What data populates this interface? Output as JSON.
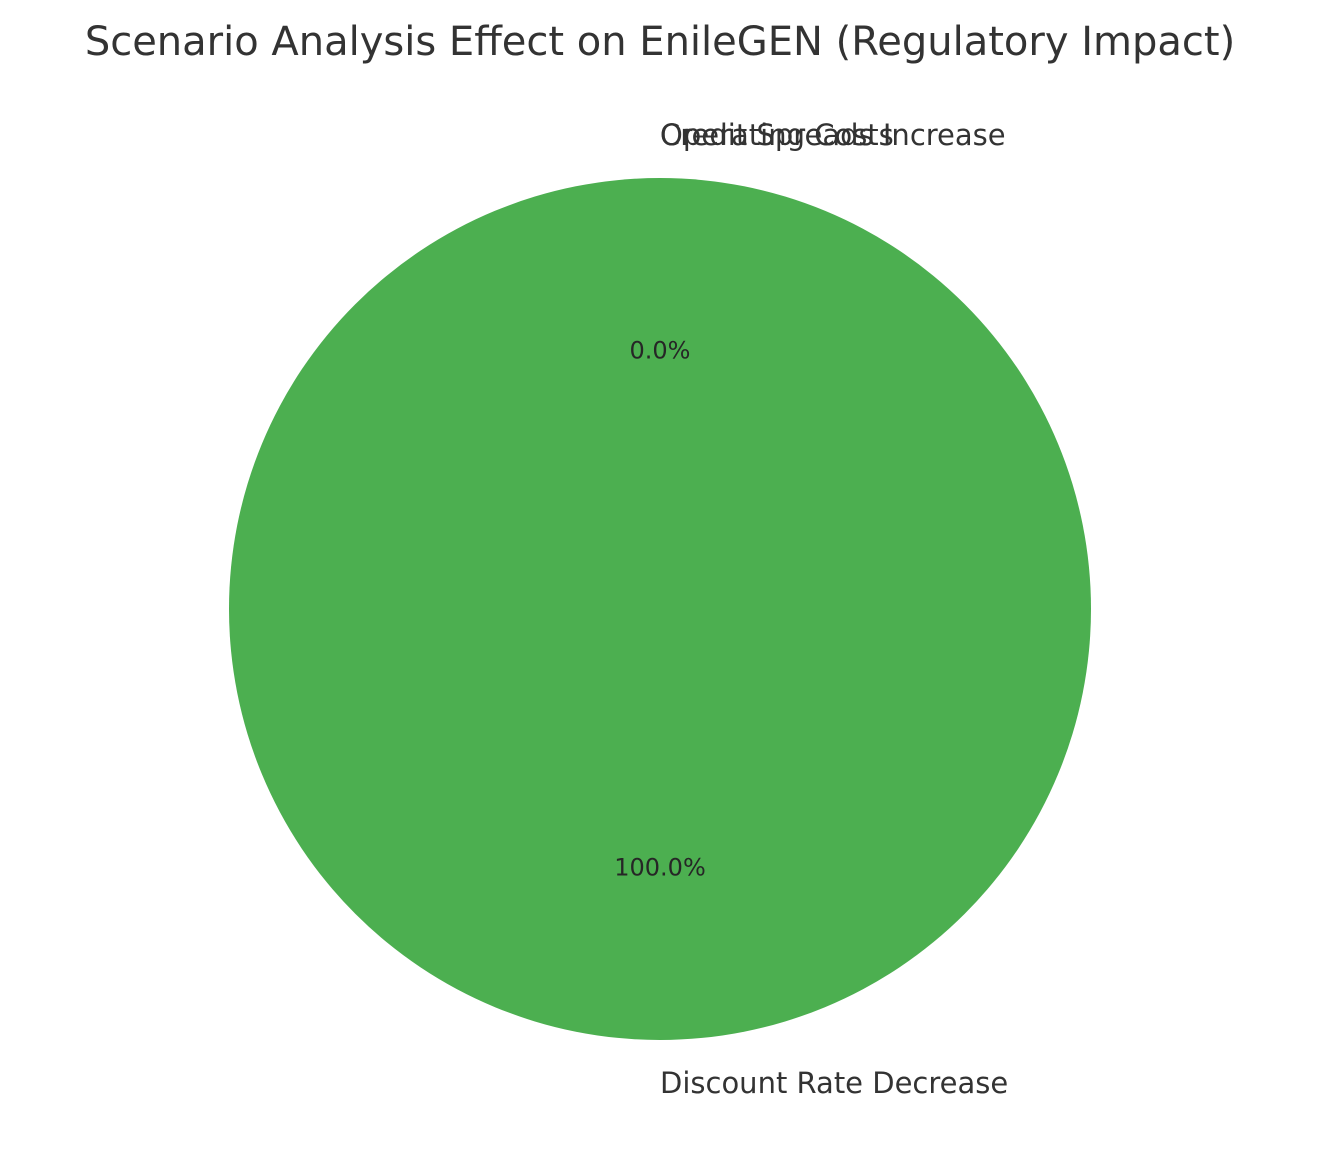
{
  "chart_data": {
    "type": "pie",
    "title": "Scenario Analysis Effect on EnileGEN (Regulatory Impact)",
    "slices": [
      {
        "label": "Operating Costs",
        "value": 0.0,
        "pct_label": "0.0%",
        "color": "#4caf50"
      },
      {
        "label": "Credit Spreads Increase",
        "value": 0.0,
        "pct_label": "",
        "color": "#4caf50"
      },
      {
        "label": "Discount Rate Decrease",
        "value": 100.0,
        "pct_label": "100.0%",
        "color": "#4caf50"
      }
    ]
  }
}
